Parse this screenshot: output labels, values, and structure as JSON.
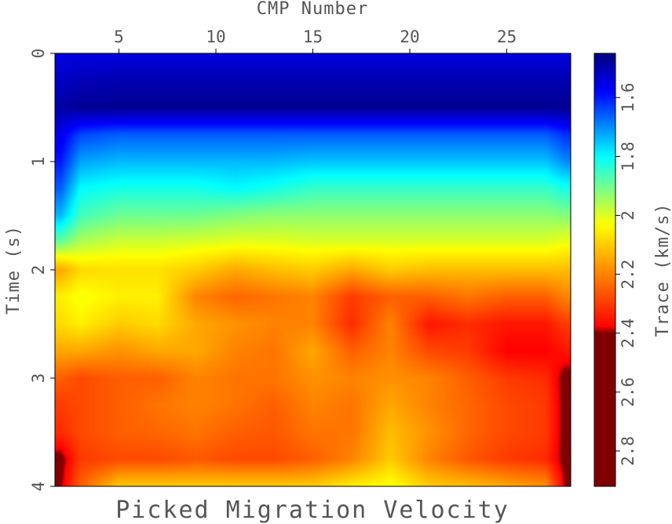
{
  "chart_data": {
    "type": "heatmap",
    "title": "Picked Migration Velocity",
    "xlabel": "CMP Number",
    "ylabel": "Time (s)",
    "colorbar_label": "Trace (km/s)",
    "x_axis_position": "top",
    "x_ticks": [
      5,
      10,
      15,
      20,
      25
    ],
    "xlim": [
      1.7,
      28.3
    ],
    "y_ticks": [
      0,
      1,
      2,
      3,
      4
    ],
    "y_tick_labels": [
      "0",
      "1",
      "2",
      "3",
      "4"
    ],
    "ylim": [
      0,
      4
    ],
    "y_inverted": true,
    "colorbar_ticks": [
      1.6,
      1.8,
      2,
      2.2,
      2.4,
      2.6,
      2.8
    ],
    "colorbar_tick_labels": [
      "1.6",
      "1.8",
      "2",
      "2.2",
      "2.4",
      "2.6",
      "2.8"
    ],
    "colorbar_range": [
      1.45,
      2.92
    ],
    "colorscale": [
      "#000080",
      "#0000ff",
      "#00ffff",
      "#ffff00",
      "#ff0000",
      "#800000"
    ],
    "colorbar_stops": [
      1.45,
      1.58,
      1.8,
      2.03,
      2.38,
      2.4
    ],
    "colorbar_clip_below": 2.4,
    "colorbar_clip_color": "#800000",
    "value_grid": {
      "x": [
        2,
        3,
        5,
        7,
        9,
        11,
        13,
        15,
        17,
        19,
        21,
        23,
        25,
        27,
        28
      ],
      "y": [
        0,
        0.25,
        0.5,
        0.75,
        1,
        1.25,
        1.5,
        1.75,
        2,
        2.25,
        2.5,
        2.75,
        3,
        3.25,
        3.5,
        3.75,
        4
      ],
      "z": [
        [
          1.55,
          1.55,
          1.55,
          1.55,
          1.55,
          1.55,
          1.55,
          1.55,
          1.55,
          1.55,
          1.55,
          1.55,
          1.55,
          1.55,
          1.55
        ],
        [
          1.52,
          1.51,
          1.5,
          1.5,
          1.5,
          1.5,
          1.5,
          1.5,
          1.5,
          1.5,
          1.5,
          1.5,
          1.5,
          1.5,
          1.5
        ],
        [
          1.49,
          1.47,
          1.47,
          1.47,
          1.47,
          1.47,
          1.47,
          1.47,
          1.47,
          1.47,
          1.47,
          1.47,
          1.47,
          1.47,
          1.47
        ],
        [
          1.56,
          1.64,
          1.66,
          1.66,
          1.66,
          1.66,
          1.66,
          1.66,
          1.66,
          1.66,
          1.66,
          1.66,
          1.66,
          1.66,
          1.62
        ],
        [
          1.6,
          1.72,
          1.74,
          1.74,
          1.74,
          1.74,
          1.74,
          1.75,
          1.75,
          1.75,
          1.75,
          1.75,
          1.75,
          1.75,
          1.7
        ],
        [
          1.66,
          1.8,
          1.82,
          1.82,
          1.82,
          1.8,
          1.82,
          1.85,
          1.85,
          1.85,
          1.85,
          1.85,
          1.85,
          1.85,
          1.82
        ],
        [
          1.74,
          1.86,
          1.9,
          1.9,
          1.9,
          1.92,
          1.93,
          1.93,
          1.93,
          1.93,
          1.93,
          1.93,
          1.93,
          1.93,
          1.92
        ],
        [
          1.9,
          1.96,
          1.99,
          1.99,
          2.0,
          2.01,
          2.01,
          2.0,
          2.0,
          2.0,
          2.0,
          2.0,
          2.0,
          2.0,
          2.02
        ],
        [
          2.15,
          2.08,
          2.07,
          2.07,
          2.1,
          2.15,
          2.12,
          2.1,
          2.15,
          2.1,
          2.12,
          2.12,
          2.12,
          2.12,
          2.12
        ],
        [
          2.05,
          2.02,
          2.05,
          2.05,
          2.2,
          2.24,
          2.22,
          2.2,
          2.3,
          2.25,
          2.25,
          2.22,
          2.25,
          2.25,
          2.2
        ],
        [
          2.08,
          2.05,
          2.1,
          2.08,
          2.15,
          2.18,
          2.2,
          2.2,
          2.32,
          2.2,
          2.35,
          2.32,
          2.35,
          2.35,
          2.3
        ],
        [
          2.15,
          2.15,
          2.18,
          2.15,
          2.15,
          2.2,
          2.22,
          2.15,
          2.25,
          2.2,
          2.28,
          2.3,
          2.38,
          2.38,
          2.35
        ],
        [
          2.25,
          2.28,
          2.25,
          2.25,
          2.2,
          2.22,
          2.22,
          2.18,
          2.2,
          2.18,
          2.2,
          2.25,
          2.3,
          2.32,
          2.42
        ],
        [
          2.3,
          2.28,
          2.25,
          2.22,
          2.2,
          2.22,
          2.25,
          2.2,
          2.22,
          2.15,
          2.2,
          2.24,
          2.28,
          2.3,
          2.42
        ],
        [
          2.32,
          2.28,
          2.25,
          2.24,
          2.22,
          2.25,
          2.26,
          2.22,
          2.22,
          2.12,
          2.18,
          2.24,
          2.28,
          2.3,
          2.42
        ],
        [
          2.42,
          2.3,
          2.28,
          2.28,
          2.26,
          2.28,
          2.28,
          2.25,
          2.2,
          2.1,
          2.2,
          2.26,
          2.3,
          2.32,
          2.42
        ],
        [
          2.4,
          2.25,
          2.1,
          2.1,
          2.1,
          2.1,
          2.1,
          2.1,
          2.05,
          2.02,
          2.1,
          2.12,
          2.15,
          2.18,
          2.4
        ]
      ]
    },
    "grid": false
  }
}
